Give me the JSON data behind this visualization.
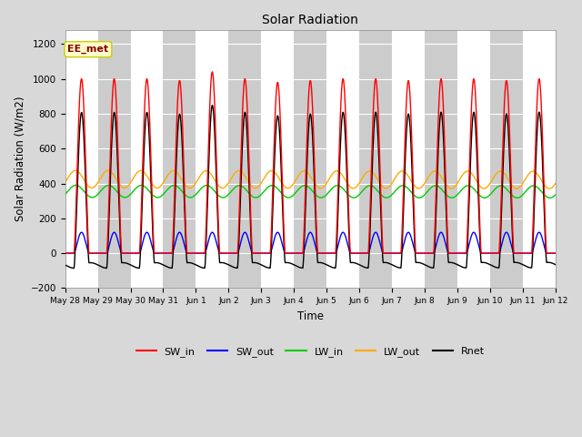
{
  "title": "Solar Radiation",
  "xlabel": "Time",
  "ylabel": "Solar Radiation (W/m2)",
  "ylim": [
    -200,
    1280
  ],
  "yticks": [
    -200,
    0,
    200,
    400,
    600,
    800,
    1000,
    1200
  ],
  "annotation_text": "EE_met",
  "annotation_bg": "#ffffcc",
  "annotation_border": "#cccc00",
  "annotation_text_color": "#880000",
  "series_colors": {
    "SW_in": "#ff0000",
    "SW_out": "#0000ff",
    "LW_in": "#00cc00",
    "LW_out": "#ffaa00",
    "Rnet": "#000000"
  },
  "num_days": 15,
  "bg_color": "#d8d8d8",
  "plot_bg": "#e8e8e8",
  "stripe_color": "#cccccc",
  "grid_color": "#ffffff",
  "x_tick_labels": [
    "May 28",
    "May 29",
    "May 30",
    "May 31",
    "Jun 1",
    "Jun 2",
    "Jun 3",
    "Jun 4",
    "Jun 5",
    "Jun 6",
    "Jun 7",
    "Jun 8",
    "Jun 9",
    "Jun 10",
    "Jun 11",
    "Jun 12"
  ]
}
